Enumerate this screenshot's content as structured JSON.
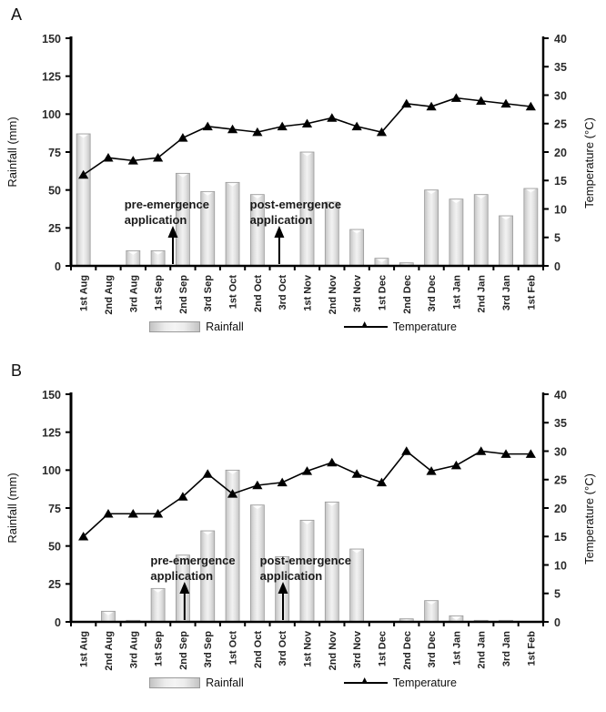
{
  "panels": [
    {
      "label": "A"
    },
    {
      "label": "B"
    }
  ],
  "chart_data": [
    {
      "type": "bar",
      "panel": "A",
      "categories": [
        "1st Aug",
        "2nd Aug",
        "3rd Aug",
        "1st Sep",
        "2nd Sep",
        "3rd Sep",
        "1st Oct",
        "2nd Oct",
        "3rd Oct",
        "1st Nov",
        "2nd Nov",
        "3rd Nov",
        "1st Dec",
        "2nd Dec",
        "3rd Dec",
        "1st Jan",
        "2nd Jan",
        "3rd Jan",
        "1st Feb"
      ],
      "series": [
        {
          "name": "Rainfall",
          "type": "bar",
          "axis": "left",
          "values": [
            87,
            0,
            10,
            10,
            61,
            49,
            55,
            47,
            0,
            75,
            42,
            24,
            5,
            2,
            50,
            44,
            47,
            33,
            51
          ]
        },
        {
          "name": "Temperature",
          "type": "line",
          "axis": "right",
          "values": [
            16,
            19,
            18.5,
            19,
            22.5,
            24.5,
            24,
            23.5,
            24.5,
            25,
            26,
            24.5,
            23.5,
            28.5,
            28,
            29.5,
            29,
            28.5,
            28
          ]
        }
      ],
      "ylabel_left": "Rainfall (mm)",
      "ylim_left": [
        0,
        150
      ],
      "yticks_left": [
        0,
        25,
        50,
        75,
        100,
        125,
        150
      ],
      "ylabel_right": "Temperature (°C)",
      "ylim_right": [
        0,
        40
      ],
      "yticks_right": [
        0,
        5,
        10,
        15,
        20,
        25,
        30,
        35,
        40
      ],
      "grid": false,
      "legend": [
        "Rainfall",
        "Temperature"
      ],
      "legend_position": "bottom",
      "annotations": [
        {
          "lines": [
            "pre-emergence",
            "application"
          ],
          "text_frac": 2.15,
          "arrow_frac": 4.1
        },
        {
          "lines": [
            "post-emergence",
            "application"
          ],
          "text_frac": 7.2,
          "arrow_frac": 8.38
        }
      ]
    },
    {
      "type": "bar",
      "panel": "B",
      "categories": [
        "1st Aug",
        "2nd Aug",
        "3rd Aug",
        "1st Sep",
        "2nd Sep",
        "3rd Sep",
        "1st Oct",
        "2nd Oct",
        "3rd Oct",
        "1st Nov",
        "2nd Nov",
        "3rd Nov",
        "1st Dec",
        "2nd Dec",
        "3rd Dec",
        "1st Jan",
        "2nd Jan",
        "3rd Jan",
        "1st Feb"
      ],
      "series": [
        {
          "name": "Rainfall",
          "type": "bar",
          "axis": "left",
          "values": [
            0,
            7,
            1,
            22,
            44,
            60,
            100,
            77,
            43,
            67,
            79,
            48,
            0,
            2,
            14,
            4,
            1,
            1,
            0
          ]
        },
        {
          "name": "Temperature",
          "type": "line",
          "axis": "right",
          "values": [
            15,
            19,
            19,
            19,
            22,
            26,
            22.5,
            24,
            24.5,
            26.5,
            28,
            26,
            24.5,
            30,
            26.5,
            27.5,
            30,
            29.5,
            29.5
          ]
        }
      ],
      "ylabel_left": "Rainfall (mm)",
      "ylim_left": [
        0,
        150
      ],
      "yticks_left": [
        0,
        25,
        50,
        75,
        100,
        125,
        150
      ],
      "ylabel_right": "Temperature (°C)",
      "ylim_right": [
        0,
        40
      ],
      "yticks_right": [
        0,
        5,
        10,
        15,
        20,
        25,
        30,
        35,
        40
      ],
      "grid": false,
      "legend": [
        "Rainfall",
        "Temperature"
      ],
      "legend_position": "bottom",
      "annotations": [
        {
          "lines": [
            "pre-emergence",
            "application"
          ],
          "text_frac": 3.2,
          "arrow_frac": 4.57
        },
        {
          "lines": [
            "post-emergence",
            "application"
          ],
          "text_frac": 7.6,
          "arrow_frac": 8.53
        }
      ]
    }
  ],
  "colors": {
    "bar_fill_edge": "#c3c3c3",
    "bar_fill_center": "#f2f2f2",
    "bar_stroke": "#9a9a9a",
    "line": "#000000",
    "axis": "#000000",
    "text": "#1a1a1a"
  }
}
